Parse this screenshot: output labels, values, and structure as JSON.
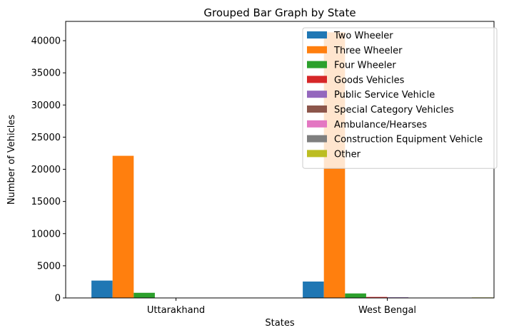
{
  "chart_data": {
    "type": "bar",
    "title": "Grouped Bar Graph by State",
    "xlabel": "States",
    "ylabel": "Number of Vehicles",
    "categories": [
      "Uttarakhand",
      "West Bengal"
    ],
    "ylim": [
      0,
      43000
    ],
    "yticks": [
      0,
      5000,
      10000,
      15000,
      20000,
      25000,
      30000,
      35000,
      40000
    ],
    "grid": false,
    "legend_position": "top-right",
    "series": [
      {
        "name": "Two Wheeler",
        "color": "#1f77b4",
        "values": [
          2700,
          2550
        ]
      },
      {
        "name": "Three Wheeler",
        "color": "#ff7f0e",
        "values": [
          22100,
          41300
        ]
      },
      {
        "name": "Four Wheeler",
        "color": "#2ca02c",
        "values": [
          800,
          700
        ]
      },
      {
        "name": "Goods Vehicles",
        "color": "#d62728",
        "values": [
          20,
          150
        ]
      },
      {
        "name": "Public Service Vehicle",
        "color": "#9467bd",
        "values": [
          10,
          100
        ]
      },
      {
        "name": "Special Category Vehicles",
        "color": "#8c564b",
        "values": [
          0,
          20
        ]
      },
      {
        "name": "Ambulance/Hearses",
        "color": "#e377c2",
        "values": [
          0,
          10
        ]
      },
      {
        "name": "Construction Equipment Vehicle",
        "color": "#7f7f7f",
        "values": [
          0,
          5
        ]
      },
      {
        "name": "Other",
        "color": "#bcbd22",
        "values": [
          10,
          80
        ]
      }
    ]
  }
}
